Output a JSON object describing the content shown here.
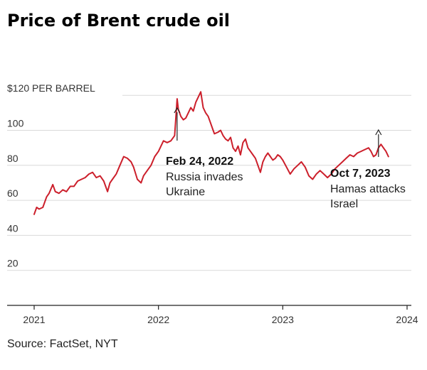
{
  "title": "Price of Brent crude oil",
  "source": "Source: FactSet, NYT",
  "colors": {
    "line": "#cc1f2b",
    "grid": "#d9d9d9",
    "text": "#222222"
  },
  "chart_data": {
    "type": "line",
    "title": "Price of Brent crude oil",
    "ylabel": "$120 PER BARREL",
    "xlabel": "",
    "y_ticks": [
      20,
      40,
      60,
      80,
      100
    ],
    "y_top_label": "$120 PER BARREL",
    "x_ticks": [
      "2021",
      "2022",
      "2023",
      "2024"
    ],
    "ylim": [
      0,
      122
    ],
    "xlim": [
      2021.0,
      2024.0
    ],
    "grid": true,
    "series": [
      {
        "x": [
          2021.0,
          2021.02,
          2021.04,
          2021.07,
          2021.1,
          2021.12,
          2021.15,
          2021.17,
          2021.2,
          2021.23,
          2021.26,
          2021.29,
          2021.32,
          2021.35,
          2021.38,
          2021.41,
          2021.44,
          2021.47,
          2021.5,
          2021.53,
          2021.56,
          2021.59,
          2021.61,
          2021.63,
          2021.66,
          2021.69,
          2021.72,
          2021.75,
          2021.78,
          2021.8,
          2021.83,
          2021.86,
          2021.88,
          2021.91,
          2021.94,
          2021.97,
          2022.0,
          2022.04,
          2022.07,
          2022.1,
          2022.13,
          2022.15,
          2022.16,
          2022.18,
          2022.2,
          2022.22,
          2022.24,
          2022.26,
          2022.28,
          2022.3,
          2022.32,
          2022.34,
          2022.36,
          2022.38,
          2022.4,
          2022.42,
          2022.44,
          2022.45,
          2022.48,
          2022.5,
          2022.52,
          2022.54,
          2022.56,
          2022.58,
          2022.6,
          2022.62,
          2022.64,
          2022.66,
          2022.68,
          2022.7,
          2022.72,
          2022.74,
          2022.76,
          2022.78,
          2022.8,
          2022.82,
          2022.84,
          2022.86,
          2022.88,
          2022.9,
          2022.92,
          2022.94,
          2022.96,
          2022.98,
          2023.0,
          2023.03,
          2023.06,
          2023.09,
          2023.12,
          2023.15,
          2023.18,
          2023.21,
          2023.24,
          2023.27,
          2023.3,
          2023.33,
          2023.36,
          2023.39,
          2023.42,
          2023.45,
          2023.48,
          2023.51,
          2023.54,
          2023.57,
          2023.6,
          2023.63,
          2023.66,
          2023.69,
          2023.71,
          2023.73,
          2023.75,
          2023.77,
          2023.79,
          2023.81,
          2023.83,
          2023.85
        ],
        "values": [
          52,
          56,
          55,
          56,
          62,
          64,
          69,
          65,
          64,
          66,
          65,
          68,
          68,
          71,
          72,
          73,
          75,
          76,
          73,
          74,
          71,
          65,
          70,
          72,
          75,
          80,
          85,
          84,
          82,
          79,
          72,
          70,
          74,
          77,
          80,
          85,
          88,
          94,
          93,
          94,
          97,
          118,
          112,
          108,
          106,
          107,
          110,
          113,
          111,
          116,
          119,
          122,
          113,
          110,
          108,
          104,
          100,
          98,
          99,
          100,
          97,
          95,
          94,
          96,
          90,
          88,
          91,
          86,
          93,
          95,
          90,
          88,
          86,
          84,
          80,
          76,
          82,
          85,
          87,
          85,
          83,
          84,
          86,
          85,
          83,
          79,
          75,
          78,
          80,
          82,
          79,
          74,
          72,
          75,
          77,
          75,
          73,
          75,
          78,
          80,
          82,
          84,
          86,
          85,
          87,
          88,
          89,
          90,
          88,
          85,
          86,
          90,
          92,
          90,
          88,
          85
        ]
      }
    ],
    "annotations": [
      {
        "x": 2022.15,
        "date": "Feb 24, 2022",
        "lines": [
          "Russia invades",
          "Ukraine"
        ]
      },
      {
        "x": 2023.77,
        "date": "Oct 7, 2023",
        "lines": [
          "Hamas attacks",
          "Israel"
        ]
      }
    ]
  }
}
